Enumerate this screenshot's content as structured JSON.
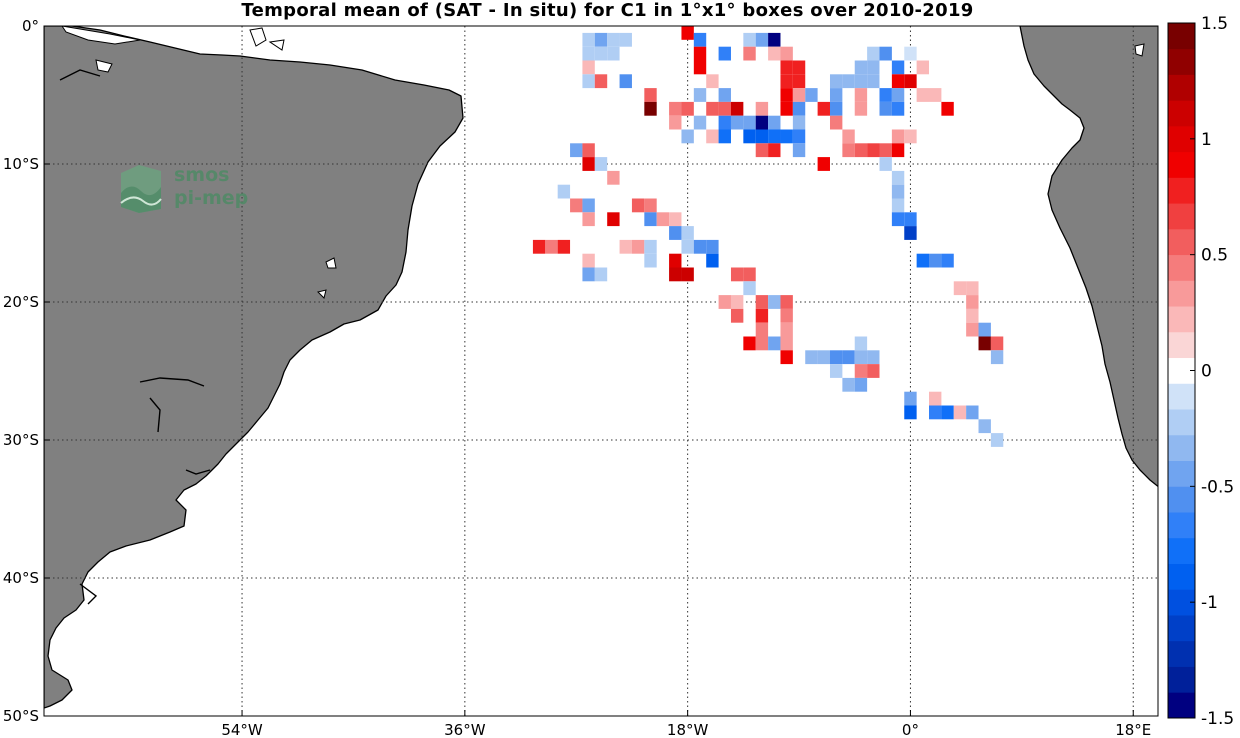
{
  "title": "Temporal mean of (SAT - In situ) for C1 in 1°x1° boxes over 2010-2019",
  "logo": {
    "line1": "smos",
    "line2": "pi-mep"
  },
  "colors": {
    "land": "#808080",
    "coast": "#000000",
    "ocean": "#ffffff",
    "grid": "#333333"
  },
  "map": {
    "lon_range": [
      -70,
      20
    ],
    "lat_range": [
      -50,
      0
    ],
    "lat_ticks": [
      {
        "value": 0,
        "label": "0°"
      },
      {
        "value": -10,
        "label": "10°S"
      },
      {
        "value": -20,
        "label": "20°S"
      },
      {
        "value": -30,
        "label": "30°S"
      },
      {
        "value": -40,
        "label": "40°S"
      },
      {
        "value": -50,
        "label": "50°S"
      }
    ],
    "lon_ticks": [
      {
        "value": -54,
        "label": "54°W"
      },
      {
        "value": -36,
        "label": "36°W"
      },
      {
        "value": -18,
        "label": "18°W"
      },
      {
        "value": 0,
        "label": "0°"
      },
      {
        "value": 18,
        "label": "18°E"
      }
    ],
    "grid": "dotted"
  },
  "colorbar": {
    "range": [
      -1.5,
      1.5
    ],
    "ticks": [
      {
        "value": 1.5,
        "label": "1.5"
      },
      {
        "value": 1,
        "label": "1"
      },
      {
        "value": 0.5,
        "label": "0.5"
      },
      {
        "value": 0,
        "label": "0"
      },
      {
        "value": -0.5,
        "label": "-0.5"
      },
      {
        "value": -1,
        "label": "-1"
      },
      {
        "value": -1.5,
        "label": "-1.5"
      }
    ],
    "levels": [
      "#000080",
      "#00209a",
      "#0030b0",
      "#0040c8",
      "#0050e0",
      "#0060f0",
      "#1070f8",
      "#3080f8",
      "#5090f0",
      "#70a4f0",
      "#90b8f0",
      "#b0cef4",
      "#d0e2f8",
      "#ffffff",
      "#fad6d6",
      "#fab8b8",
      "#f89a9a",
      "#f57c7c",
      "#f25e5e",
      "#f04040",
      "#f02020",
      "#f00000",
      "#e00000",
      "#cc0000",
      "#b00000",
      "#900000",
      "#780000"
    ]
  },
  "chart_data": {
    "type": "heatmap",
    "title": "Temporal mean of (SAT - In situ) for C1 in 1°x1° boxes over 2010-2019",
    "units_box": "1°x1°",
    "period": "2010-2019",
    "columns": [
      "lon",
      "lat",
      "value"
    ],
    "cells": [
      [
        -26,
        -1,
        -0.2
      ],
      [
        -25,
        -1,
        -0.4
      ],
      [
        -24,
        -1,
        -0.2
      ],
      [
        -23,
        -1,
        -0.2
      ],
      [
        -18,
        -0.5,
        0.9
      ],
      [
        -17,
        -1,
        -0.7
      ],
      [
        -13,
        -1,
        -0.2
      ],
      [
        -12,
        -1,
        -0.5
      ],
      [
        -11,
        -1,
        -1.5
      ],
      [
        -26,
        -2,
        -0.2
      ],
      [
        -25,
        -2,
        -0.2
      ],
      [
        -24,
        -2,
        -0.2
      ],
      [
        -17,
        -2,
        0.9
      ],
      [
        -15,
        -2,
        -0.7
      ],
      [
        -13,
        -2,
        0.4
      ],
      [
        -11,
        -2,
        0.2
      ],
      [
        -10,
        -2,
        0.3
      ],
      [
        -3,
        -2,
        -0.2
      ],
      [
        -2,
        -2,
        -0.6
      ],
      [
        0,
        -2,
        -0.1
      ],
      [
        -26,
        -3,
        0.2
      ],
      [
        -17,
        -3,
        0.9
      ],
      [
        -10,
        -3,
        0.8
      ],
      [
        -9,
        -3,
        0.8
      ],
      [
        -4,
        -3,
        -0.3
      ],
      [
        -3,
        -3,
        -0.3
      ],
      [
        -1,
        -3,
        -0.7
      ],
      [
        1,
        -3,
        0.2
      ],
      [
        -26,
        -4,
        -0.2
      ],
      [
        -25,
        -4,
        0.5
      ],
      [
        -23,
        -4,
        -0.6
      ],
      [
        -16,
        -4,
        0.2
      ],
      [
        -10,
        -4,
        0.8
      ],
      [
        -9,
        -4,
        0.8
      ],
      [
        -6,
        -4,
        -0.3
      ],
      [
        -5,
        -4,
        -0.3
      ],
      [
        -4,
        -4,
        -0.3
      ],
      [
        -3,
        -4,
        -0.3
      ],
      [
        -1,
        -4,
        0.9
      ],
      [
        0,
        -4,
        1.0
      ],
      [
        -21,
        -5,
        0.5
      ],
      [
        -17,
        -5,
        -0.3
      ],
      [
        -15,
        -5,
        -0.5
      ],
      [
        -10,
        -5,
        0.9
      ],
      [
        -9,
        -5,
        0.3
      ],
      [
        -8,
        -5,
        -0.4
      ],
      [
        -6,
        -5,
        -0.5
      ],
      [
        -4,
        -5,
        0.3
      ],
      [
        -2,
        -5,
        -0.7
      ],
      [
        -1,
        -5,
        -0.4
      ],
      [
        1,
        -5,
        0.2
      ],
      [
        2,
        -5,
        0.2
      ],
      [
        -21,
        -6,
        1.4
      ],
      [
        -19,
        -6,
        0.4
      ],
      [
        -18,
        -6,
        0.5
      ],
      [
        -16,
        -6,
        0.5
      ],
      [
        -15,
        -6,
        0.5
      ],
      [
        -14,
        -6,
        1.1
      ],
      [
        -12,
        -6,
        0.3
      ],
      [
        -10,
        -6,
        0.9
      ],
      [
        -9,
        -6,
        -0.6
      ],
      [
        -7,
        -6,
        0.8
      ],
      [
        -6,
        -6,
        -0.6
      ],
      [
        -4,
        -6,
        0.3
      ],
      [
        -2,
        -6,
        -0.6
      ],
      [
        -1,
        -6,
        -0.7
      ],
      [
        3,
        -6,
        0.9
      ],
      [
        -19,
        -7,
        0.3
      ],
      [
        -17,
        -7,
        -0.3
      ],
      [
        -15,
        -7,
        -0.7
      ],
      [
        -14,
        -7,
        -0.4
      ],
      [
        -13,
        -7,
        -0.4
      ],
      [
        -12,
        -7,
        -1.4
      ],
      [
        -11,
        -7,
        -0.5
      ],
      [
        -9,
        -7,
        -0.3
      ],
      [
        -6,
        -7,
        0.4
      ],
      [
        -18,
        -8,
        -0.3
      ],
      [
        -16,
        -8,
        0.2
      ],
      [
        -15,
        -8,
        -0.8
      ],
      [
        -13,
        -8,
        -0.9
      ],
      [
        -12,
        -8,
        -0.9
      ],
      [
        -11,
        -8,
        -0.8
      ],
      [
        -10,
        -8,
        -0.8
      ],
      [
        -9,
        -8,
        -0.7
      ],
      [
        -5,
        -8,
        0.3
      ],
      [
        -1,
        -8,
        0.3
      ],
      [
        0,
        -8,
        0.2
      ],
      [
        -27,
        -9,
        -0.4
      ],
      [
        -26,
        -9,
        0.5
      ],
      [
        -12,
        -9,
        0.6
      ],
      [
        -11,
        -9,
        0.8
      ],
      [
        -9,
        -9,
        -0.5
      ],
      [
        -5,
        -9,
        0.4
      ],
      [
        -4,
        -9,
        0.6
      ],
      [
        -3,
        -9,
        0.7
      ],
      [
        -2,
        -9,
        0.5
      ],
      [
        -1,
        -9,
        0.9
      ],
      [
        -26,
        -10,
        1.0
      ],
      [
        -25,
        -10,
        -0.2
      ],
      [
        -7,
        -10,
        0.9
      ],
      [
        -2,
        -10,
        -0.2
      ],
      [
        -24,
        -11,
        0.3
      ],
      [
        -1,
        -11,
        -0.2
      ],
      [
        -28,
        -12,
        -0.2
      ],
      [
        -1,
        -12,
        -0.3
      ],
      [
        -27,
        -13,
        0.4
      ],
      [
        -26,
        -13,
        -0.4
      ],
      [
        -22,
        -13,
        0.6
      ],
      [
        -21,
        -13,
        0.4
      ],
      [
        -1,
        -13,
        -0.2
      ],
      [
        -26,
        -14,
        0.3
      ],
      [
        -24,
        -14,
        1.0
      ],
      [
        -21,
        -14,
        -0.6
      ],
      [
        -20,
        -14,
        0.3
      ],
      [
        -19,
        -14,
        0.2
      ],
      [
        -1,
        -14,
        -0.7
      ],
      [
        0,
        -14,
        -0.7
      ],
      [
        -19,
        -15,
        -0.6
      ],
      [
        -18,
        -15,
        -0.2
      ],
      [
        0,
        -15,
        -1.1
      ],
      [
        -30,
        -16,
        0.8
      ],
      [
        -29,
        -16,
        0.4
      ],
      [
        -28,
        -16,
        0.8
      ],
      [
        -23,
        -16,
        0.2
      ],
      [
        -22,
        -16,
        0.3
      ],
      [
        -21,
        -16,
        -0.2
      ],
      [
        -18,
        -16,
        -0.2
      ],
      [
        -17,
        -16,
        -0.6
      ],
      [
        -16,
        -16,
        -0.6
      ],
      [
        -26,
        -17,
        0.2
      ],
      [
        -21,
        -17,
        -0.2
      ],
      [
        -19,
        -17,
        1.0
      ],
      [
        -16,
        -17,
        -0.9
      ],
      [
        1,
        -17,
        -0.8
      ],
      [
        2,
        -17,
        -0.6
      ],
      [
        3,
        -17,
        -0.7
      ],
      [
        -26,
        -18,
        -0.5
      ],
      [
        -25,
        -18,
        -0.2
      ],
      [
        -19,
        -18,
        1.1
      ],
      [
        -18,
        -18,
        1.1
      ],
      [
        -14,
        -18,
        0.5
      ],
      [
        -13,
        -18,
        0.5
      ],
      [
        -13,
        -19,
        -0.2
      ],
      [
        4,
        -19,
        0.2
      ],
      [
        5,
        -19,
        0.2
      ],
      [
        -15,
        -20,
        0.3
      ],
      [
        -14,
        -20,
        0.2
      ],
      [
        -12,
        -20,
        0.6
      ],
      [
        -11,
        -20,
        -0.3
      ],
      [
        -10,
        -20,
        0.5
      ],
      [
        5,
        -20,
        0.3
      ],
      [
        -14,
        -21,
        0.5
      ],
      [
        -12,
        -21,
        0.8
      ],
      [
        -10,
        -21,
        0.4
      ],
      [
        5,
        -21,
        0.2
      ],
      [
        -12,
        -22,
        0.4
      ],
      [
        -10,
        -22,
        0.3
      ],
      [
        5,
        -22,
        0.3
      ],
      [
        6,
        -22,
        -0.5
      ],
      [
        -13,
        -23,
        0.9
      ],
      [
        -12,
        -23,
        0.4
      ],
      [
        -11,
        -23,
        -0.5
      ],
      [
        -10,
        -23,
        0.3
      ],
      [
        -4,
        -23,
        -0.2
      ],
      [
        6,
        -23,
        1.4
      ],
      [
        7,
        -23,
        0.6
      ],
      [
        -10,
        -24,
        0.9
      ],
      [
        -8,
        -24,
        -0.3
      ],
      [
        -7,
        -24,
        -0.3
      ],
      [
        -6,
        -24,
        -0.6
      ],
      [
        -5,
        -24,
        -0.6
      ],
      [
        -4,
        -24,
        -0.3
      ],
      [
        -3,
        -24,
        -0.3
      ],
      [
        7,
        -24,
        -0.3
      ],
      [
        -6,
        -25,
        -0.2
      ],
      [
        -4,
        -25,
        0.4
      ],
      [
        -3,
        -25,
        0.5
      ],
      [
        -5,
        -26,
        -0.3
      ],
      [
        -4,
        -26,
        -0.5
      ],
      [
        0,
        -27,
        -0.4
      ],
      [
        2,
        -27,
        0.2
      ],
      [
        0,
        -28,
        -0.9
      ],
      [
        2,
        -28,
        -0.7
      ],
      [
        3,
        -28,
        -0.8
      ],
      [
        4,
        -28,
        0.2
      ],
      [
        5,
        -28,
        -0.5
      ],
      [
        6,
        -29,
        -0.3
      ],
      [
        7,
        -30,
        -0.2
      ]
    ]
  }
}
